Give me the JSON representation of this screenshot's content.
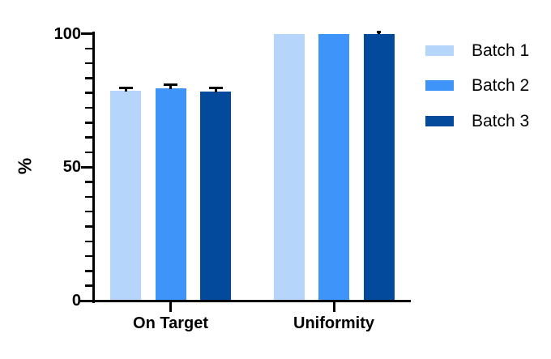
{
  "chart_data": {
    "type": "bar",
    "title": "",
    "categories": [
      "On Target",
      "Uniformity"
    ],
    "series": [
      {
        "name": "Batch 1",
        "color": "#B5D5FA",
        "values": [
          78.5,
          100
        ],
        "errors": [
          0.8,
          0
        ]
      },
      {
        "name": "Batch 2",
        "color": "#3E94F8",
        "values": [
          79.5,
          100
        ],
        "errors": [
          0.8,
          0
        ]
      },
      {
        "name": "Batch 3",
        "color": "#03499C",
        "values": [
          78.3,
          100
        ],
        "errors": [
          1.0,
          0.3
        ]
      }
    ],
    "xlabel": "",
    "ylabel": "%",
    "ylim": [
      0,
      100
    ],
    "yticks": [
      0,
      50,
      100
    ],
    "ytick_labels": [
      "0",
      "50",
      "100"
    ],
    "minor_ticks_between_major": 8,
    "grid": false,
    "legend_position": "right",
    "error_bars": "sd_caps_black",
    "axis_color": "#000000",
    "text_color": "#000000",
    "background_color": "#FFFFFF"
  }
}
